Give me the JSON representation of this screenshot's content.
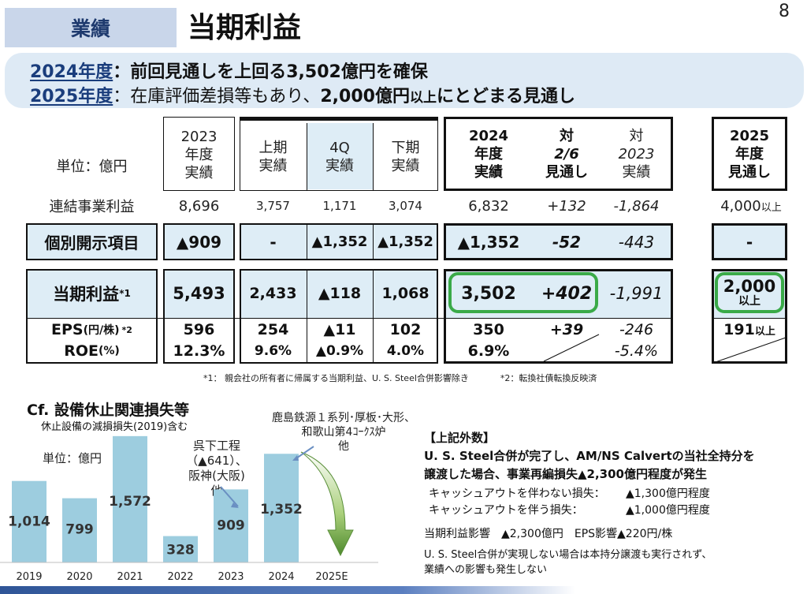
{
  "header": {
    "tag": "業績",
    "title": "当期利益",
    "page_number": "8"
  },
  "banner": {
    "line1_year": "2024年度",
    "line1_text": "：前回見通しを上回る3,502億円を確保",
    "line2_year": "2025年度",
    "line2_text_a": "：在庫評価差損等もあり、",
    "line2_text_b": "2,000億円",
    "line2_text_c": "以上",
    "line2_text_d": "にとどまる見通し"
  },
  "table": {
    "unit": "単位：億円",
    "headers": {
      "fy2023": [
        "2023",
        "年度",
        "実績"
      ],
      "h1": [
        "上期",
        "実績"
      ],
      "q4": [
        "4Q",
        "実績"
      ],
      "h2": [
        "下期",
        "実績"
      ],
      "fy2024": [
        "2024",
        "年度",
        "実績"
      ],
      "vs26": [
        "対",
        "2/6",
        "見通し"
      ],
      "vs2023": [
        "対",
        "2023",
        "実績"
      ],
      "fy2025": [
        "2025",
        "年度",
        "見通し"
      ]
    },
    "rows": {
      "consolidated": {
        "label": "連結事業利益",
        "fy2023": "8,696",
        "h1": "3,757",
        "q4": "1,171",
        "h2": "3,074",
        "fy2024": "6,832",
        "vs26": "+132",
        "vs2023": "-1,864",
        "fy2025": "4,000",
        "fy2025_suffix": "以上"
      },
      "special": {
        "label": "個別開示項目",
        "fy2023": "▲909",
        "h1": "-",
        "q4": "▲1,352",
        "h2": "▲1,352",
        "fy2024": "▲1,352",
        "vs26": "-52",
        "vs2023": "-443",
        "fy2025": "-"
      },
      "net_income": {
        "label": "当期利益",
        "label_sup": "*1",
        "fy2023": "5,493",
        "h1": "2,433",
        "q4": "▲118",
        "h2": "1,068",
        "fy2024": "3,502",
        "vs26": "+402",
        "vs2023": "-1,991",
        "fy2025": "2,000",
        "fy2025_suffix": "以上"
      },
      "eps": {
        "label": "EPS",
        "label_unit": "(円/株)",
        "label_sup": "*2",
        "fy2023": "596",
        "h1": "254",
        "q4": "▲11",
        "h2": "102",
        "fy2024": "350",
        "vs26": "+39",
        "vs2023": "-246",
        "fy2025": "191",
        "fy2025_suffix": "以上"
      },
      "roe": {
        "label": "ROE",
        "label_unit": "(%)",
        "fy2023": "12.3%",
        "h1": "9.6%",
        "q4": "▲0.9%",
        "h2": "4.0%",
        "fy2024": "6.9%",
        "vs2023": "-5.4%"
      }
    },
    "footnote1": "*1： 親会社の所有者に帰属する当期利益、U. S. Steel合併影響除き",
    "footnote2": "*2：転換社債転換反映済"
  },
  "chart_data": {
    "type": "bar",
    "title": "Cf. 設備休止関連損失等",
    "subtitle": "休止設備の減損損失(2019)含む",
    "unit": "単位：億円",
    "categories": [
      "2019",
      "2020",
      "2021",
      "2022",
      "2023",
      "2024",
      "2025E"
    ],
    "values": [
      1014,
      799,
      1572,
      328,
      909,
      1352,
      null
    ],
    "value_labels": [
      "1,014",
      "799",
      "1,572",
      "328",
      "909",
      "1,352",
      ""
    ],
    "ylim": [
      0,
      1600
    ],
    "bar_color": "#9dcddf",
    "annotations": [
      {
        "category": "2023",
        "text": [
          "呉下工程",
          "（▲641）、",
          "阪神(大阪)",
          "他"
        ]
      },
      {
        "category": "2024",
        "text": [
          "鹿島鉄源１系列･厚板･大形、",
          "和歌山第4ｺｰｸｽ炉",
          "他"
        ]
      }
    ],
    "trend": "2025E decreasing (downward arrow)"
  },
  "notes": {
    "title": "【上記外数】",
    "line1": "U. S. Steel合併が完了し、AM/NS Calvertの当社全持分を",
    "line2": "譲渡した場合、事業再編損失▲2,300億円程度が発生",
    "item1_label": "キャッシュアウトを伴わない損失：",
    "item1_value": "▲1,300億円程度",
    "item2_label": "キャッシュアウトを伴う損失：",
    "item2_value": "▲1,000億円程度",
    "impact": "当期利益影響　▲2,300億円　EPS影響▲220円/株",
    "line3": "U. S. Steel合併が実現しない場合は本持分譲渡も実行されず、",
    "line4": "業績への影響も発生しない"
  },
  "colors": {
    "header_tag_bg": "#c9d6ea",
    "banner_bg": "#deeaf5",
    "cell_fill": "#deedf6",
    "highlight": "#3aaa48",
    "navy": "#1a3d7c",
    "footer_line": "#2f5597"
  }
}
